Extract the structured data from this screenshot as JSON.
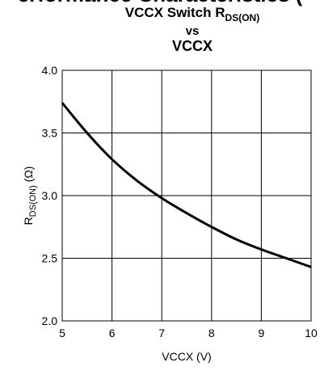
{
  "header": {
    "clipped_text": "erformance Characteristics ("
  },
  "chart_data": {
    "type": "line",
    "title_line1": "VCCX Switch R",
    "title_line1_sub": "DS(ON)",
    "title_line2": "vs",
    "title_line3": "VCCX",
    "xlabel": "VCCX (V)",
    "ylabel_main": "R",
    "ylabel_sub": "DS(ON)",
    "ylabel_unit": " (Ω)",
    "xlim": [
      5,
      10
    ],
    "ylim": [
      2.0,
      4.0
    ],
    "xticks": [
      "5",
      "6",
      "7",
      "8",
      "9",
      "10"
    ],
    "yticks": [
      "2.0",
      "2.5",
      "3.0",
      "3.5",
      "4.0"
    ],
    "grid": true,
    "series": [
      {
        "x": [
          5.0,
          5.5,
          6.0,
          6.5,
          7.0,
          7.5,
          8.0,
          8.5,
          9.0,
          9.5,
          10.0
        ],
        "y": [
          3.74,
          3.5,
          3.29,
          3.12,
          2.98,
          2.86,
          2.75,
          2.65,
          2.57,
          2.5,
          2.43
        ],
        "color": "#000000"
      }
    ]
  }
}
